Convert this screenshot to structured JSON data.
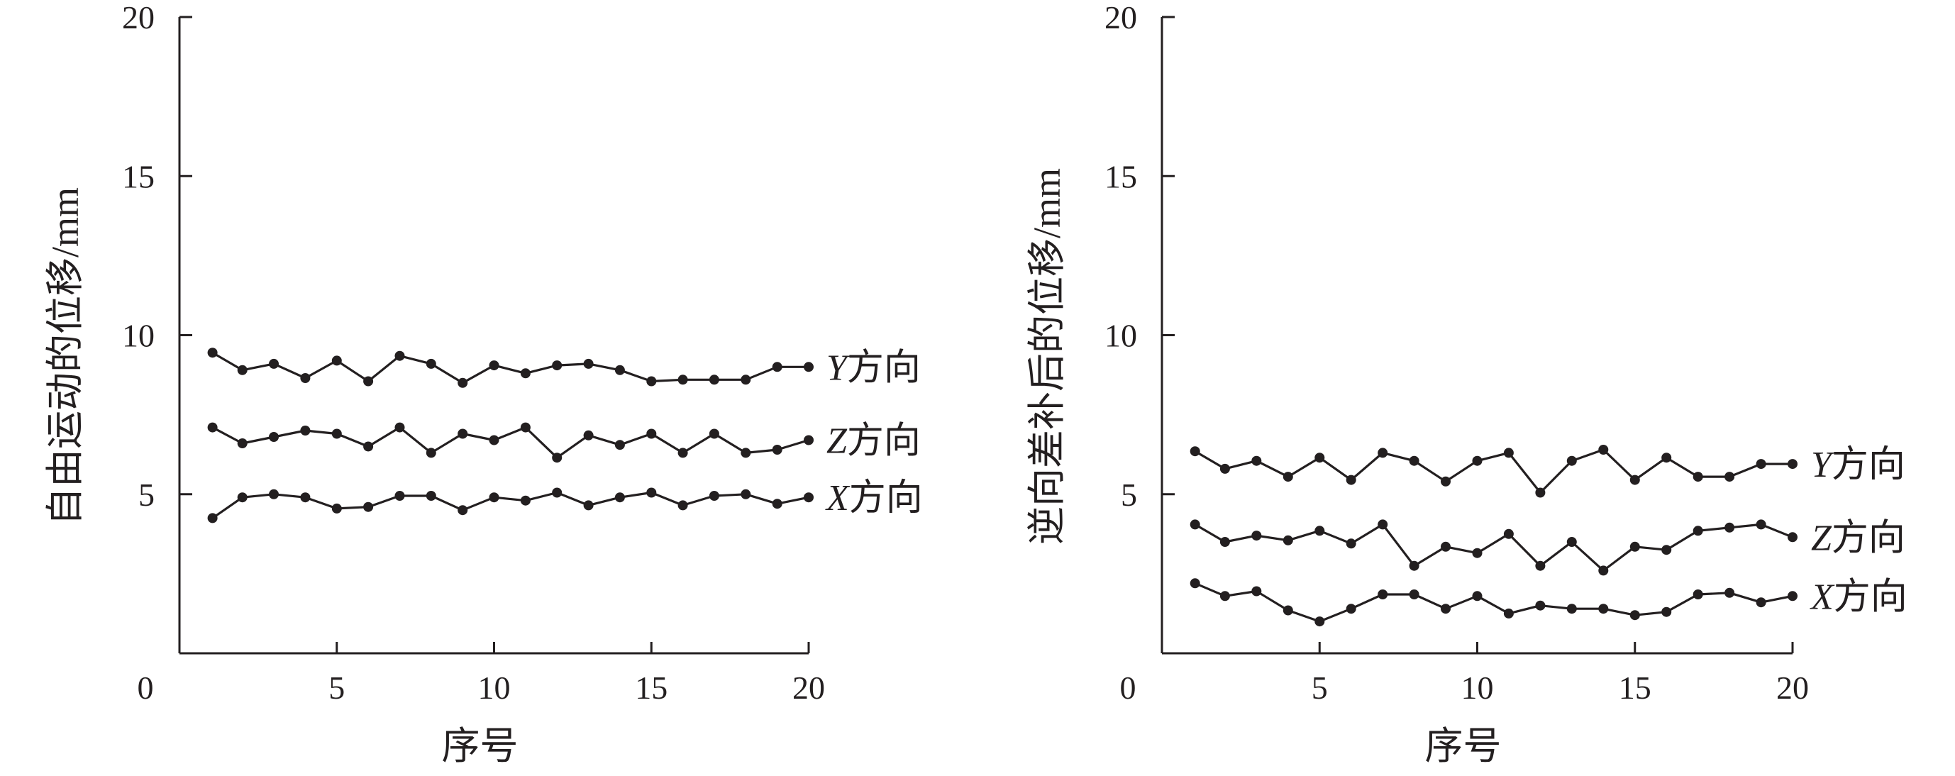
{
  "chart_data": [
    {
      "type": "line",
      "xlabel": "序号",
      "ylabel": "自由运动的位移/mm",
      "xlim": [
        0,
        20
      ],
      "ylim": [
        0,
        20
      ],
      "x_ticks": [
        "0",
        "5",
        "10",
        "15",
        "20"
      ],
      "y_ticks": [
        "5",
        "10",
        "15",
        "20"
      ],
      "grid": false,
      "series": [
        {
          "name": "Y方向",
          "name_var": "Y",
          "name_suffix": "方向",
          "x": [
            1,
            2,
            3,
            4,
            5,
            6,
            7,
            8,
            9,
            10,
            11,
            12,
            13,
            14,
            15,
            16,
            17,
            18,
            19,
            20
          ],
          "values": [
            9.45,
            8.9,
            9.1,
            8.65,
            9.2,
            8.55,
            9.35,
            9.1,
            8.5,
            9.05,
            8.8,
            9.05,
            9.1,
            8.9,
            8.55,
            8.6,
            8.6,
            8.6,
            9.0,
            9.0
          ]
        },
        {
          "name": "Z方向",
          "name_var": "Z",
          "name_suffix": "方向",
          "x": [
            1,
            2,
            3,
            4,
            5,
            6,
            7,
            8,
            9,
            10,
            11,
            12,
            13,
            14,
            15,
            16,
            17,
            18,
            19,
            20
          ],
          "values": [
            7.1,
            6.6,
            6.8,
            7.0,
            6.9,
            6.5,
            7.1,
            6.3,
            6.9,
            6.7,
            7.1,
            6.15,
            6.85,
            6.55,
            6.9,
            6.3,
            6.9,
            6.3,
            6.4,
            6.7
          ]
        },
        {
          "name": "X方向",
          "name_var": "X",
          "name_suffix": "方向",
          "x": [
            1,
            2,
            3,
            4,
            5,
            6,
            7,
            8,
            9,
            10,
            11,
            12,
            13,
            14,
            15,
            16,
            17,
            18,
            19,
            20
          ],
          "values": [
            4.25,
            4.9,
            5.0,
            4.9,
            4.55,
            4.6,
            4.95,
            4.95,
            4.5,
            4.9,
            4.8,
            5.05,
            4.65,
            4.9,
            5.05,
            4.65,
            4.95,
            5.0,
            4.7,
            4.9
          ]
        }
      ]
    },
    {
      "type": "line",
      "xlabel": "序号",
      "ylabel": "逆向差补后的位移/mm",
      "xlim": [
        0,
        20
      ],
      "ylim": [
        0,
        20
      ],
      "x_ticks": [
        "0",
        "5",
        "10",
        "15",
        "20"
      ],
      "y_ticks": [
        "5",
        "10",
        "15",
        "20"
      ],
      "grid": false,
      "series": [
        {
          "name": "Y方向",
          "name_var": "Y",
          "name_suffix": "方向",
          "x": [
            1,
            2,
            3,
            4,
            5,
            6,
            7,
            8,
            9,
            10,
            11,
            12,
            13,
            14,
            15,
            16,
            17,
            18,
            19,
            20
          ],
          "values": [
            6.35,
            5.8,
            6.05,
            5.55,
            6.15,
            5.45,
            6.3,
            6.05,
            5.4,
            6.05,
            6.3,
            5.05,
            6.05,
            6.4,
            5.45,
            6.15,
            5.55,
            5.55,
            5.95,
            5.95
          ]
        },
        {
          "name": "Z方向",
          "name_var": "Z",
          "name_suffix": "方向",
          "x": [
            1,
            2,
            3,
            4,
            5,
            6,
            7,
            8,
            9,
            10,
            11,
            12,
            13,
            14,
            15,
            16,
            17,
            18,
            19,
            20
          ],
          "values": [
            4.05,
            3.5,
            3.7,
            3.55,
            3.85,
            3.45,
            4.05,
            2.75,
            3.35,
            3.15,
            3.75,
            2.75,
            3.5,
            2.6,
            3.35,
            3.25,
            3.85,
            3.95,
            4.05,
            3.65
          ]
        },
        {
          "name": "X方向",
          "name_var": "X",
          "name_suffix": "方向",
          "x": [
            1,
            2,
            3,
            4,
            5,
            6,
            7,
            8,
            9,
            10,
            11,
            12,
            13,
            14,
            15,
            16,
            17,
            18,
            19,
            20
          ],
          "values": [
            2.2,
            1.8,
            1.95,
            1.35,
            1.0,
            1.4,
            1.85,
            1.85,
            1.4,
            1.8,
            1.25,
            1.5,
            1.4,
            1.4,
            1.2,
            1.3,
            1.85,
            1.9,
            1.6,
            1.8
          ]
        }
      ]
    }
  ]
}
